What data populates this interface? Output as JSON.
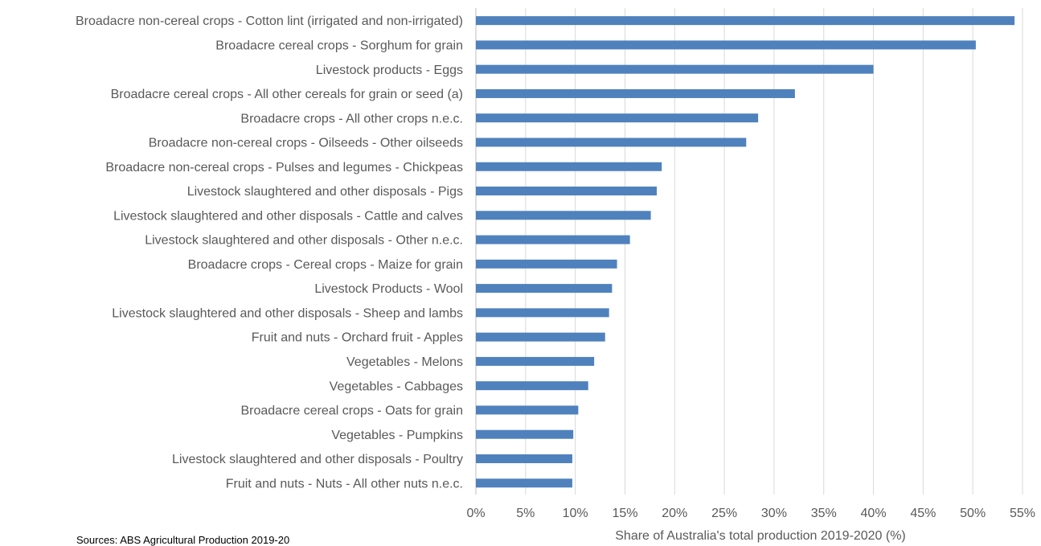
{
  "chart_data": {
    "type": "bar",
    "orientation": "horizontal",
    "categories": [
      "Broadacre non-cereal crops - Cotton lint (irrigated and non-irrigated)",
      "Broadacre cereal crops - Sorghum for grain",
      "Livestock products - Eggs",
      "Broadacre cereal crops - All other cereals for grain or seed (a)",
      "Broadacre crops - All other crops n.e.c.",
      "Broadacre non-cereal crops - Oilseeds - Other oilseeds",
      "Broadacre non-cereal crops - Pulses and legumes - Chickpeas",
      "Livestock slaughtered and other disposals - Pigs",
      "Livestock slaughtered and other disposals - Cattle and calves",
      "Livestock slaughtered and other disposals - Other n.e.c.",
      "Broadacre crops - Cereal crops - Maize for grain",
      "Livestock Products - Wool",
      "Livestock slaughtered and other disposals - Sheep and lambs",
      "Fruit and nuts - Orchard fruit - Apples",
      "Vegetables - Melons",
      "Vegetables - Cabbages",
      "Broadacre cereal crops - Oats for grain",
      "Vegetables - Pumpkins",
      "Livestock slaughtered and other disposals - Poultry",
      "Fruit and nuts - Nuts - All other nuts n.e.c."
    ],
    "values": [
      54.2,
      50.3,
      40.0,
      32.1,
      28.4,
      27.2,
      18.7,
      18.2,
      17.6,
      15.5,
      14.2,
      13.7,
      13.4,
      13.0,
      11.9,
      11.3,
      10.3,
      9.8,
      9.7,
      9.7
    ],
    "xlabel": "Share of Australia's total production 2019-2020 (%)",
    "ylabel": "",
    "xlim": [
      0,
      55
    ],
    "xticks": [
      "0%",
      "5%",
      "10%",
      "15%",
      "20%",
      "25%",
      "30%",
      "35%",
      "40%",
      "45%",
      "50%",
      "55%"
    ],
    "grid": "vertical",
    "bar_color": "#4f81bd"
  },
  "footnote": "Sources: ABS Agricultural Production 2019-20"
}
